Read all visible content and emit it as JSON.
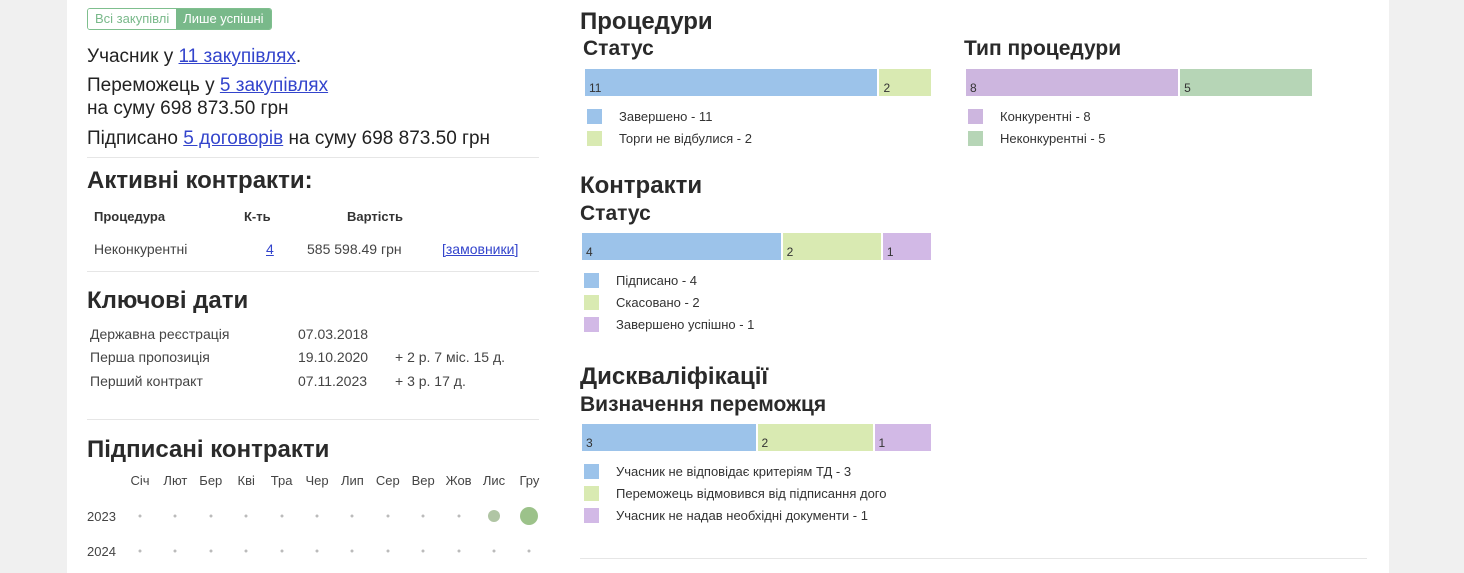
{
  "toggle": {
    "all": "Всі закупівлі",
    "success": "Лише успішні"
  },
  "summary": {
    "participant_prefix": "Учасник у ",
    "participant_link": "11 закупівлях",
    "participant_suffix": ".",
    "winner_prefix": "Переможець у ",
    "winner_link": "5 закупівлях",
    "winner_sum": "на суму 698 873.50 грн",
    "signed_prefix": "Підписано ",
    "signed_link": "5 договорів",
    "signed_suffix": " на суму 698 873.50 грн"
  },
  "active_contracts": {
    "title": "Активні контракти:",
    "headers": {
      "procedure": "Процедура",
      "count": "К-ть",
      "value": "Вартість"
    },
    "row": {
      "procedure": "Неконкурентні",
      "count": "4",
      "value": "585 598.49 грн",
      "link": "[замовники]"
    }
  },
  "key_dates": {
    "title": "Ключові дати",
    "rows": [
      {
        "label": "Державна реєстрація",
        "date": "07.03.2018",
        "delta": ""
      },
      {
        "label": "Перша пропозиція",
        "date": "19.10.2020",
        "delta": "+ 2 р. 7 міс. 15 д."
      },
      {
        "label": "Перший контракт",
        "date": "07.11.2023",
        "delta": "+ 3 р. 17 д."
      }
    ]
  },
  "signed_contracts": {
    "title": "Підписані контракти",
    "months": [
      "Січ",
      "Лют",
      "Бер",
      "Кві",
      "Тра",
      "Чер",
      "Лип",
      "Сер",
      "Вер",
      "Жов",
      "Лис",
      "Гру"
    ],
    "years": [
      "2023",
      "2024"
    ],
    "highlight": [
      {
        "year": "2023",
        "month": "Лис",
        "level": 1
      },
      {
        "year": "2023",
        "month": "Гру",
        "level": 2
      }
    ]
  },
  "procedures": {
    "title": "Процедури",
    "status": {
      "title": "Статус",
      "bars": [
        {
          "value": 11,
          "color": "#9cc3ea"
        },
        {
          "value": 2,
          "color": "#d9eab2"
        }
      ],
      "legend": [
        {
          "label": "Завершено - 11",
          "color": "#9cc3ea"
        },
        {
          "label": "Торги не відбулися - 2",
          "color": "#d9eab2"
        }
      ]
    },
    "type": {
      "title": "Тип процедури",
      "bars": [
        {
          "value": 8,
          "color": "#cdb6df"
        },
        {
          "value": 5,
          "color": "#b6d5b6"
        }
      ],
      "legend": [
        {
          "label": "Конкурентні - 8",
          "color": "#cdb6df"
        },
        {
          "label": "Неконкурентні - 5",
          "color": "#b6d5b6"
        }
      ]
    }
  },
  "contracts": {
    "title": "Контракти",
    "status": {
      "title": "Статус",
      "bars": [
        {
          "value": 4,
          "color": "#9cc3ea"
        },
        {
          "value": 2,
          "color": "#d9eab2"
        },
        {
          "value": 1,
          "color": "#d2b9e6"
        }
      ],
      "legend": [
        {
          "label": "Підписано - 4",
          "color": "#9cc3ea"
        },
        {
          "label": "Скасовано - 2",
          "color": "#d9eab2"
        },
        {
          "label": "Завершено успішно - 1",
          "color": "#d2b9e6"
        }
      ]
    }
  },
  "disqualifications": {
    "title": "Дискваліфікації",
    "winner": {
      "title": "Визначення переможця",
      "bars": [
        {
          "value": 3,
          "color": "#9cc3ea"
        },
        {
          "value": 2,
          "color": "#d9eab2"
        },
        {
          "value": 1,
          "color": "#d2b9e6"
        }
      ],
      "legend": [
        {
          "label": "Учасник не відповідає критеріям ТД - 3",
          "color": "#9cc3ea"
        },
        {
          "label": "Переможець відмовився від підписання дого",
          "color": "#d9eab2"
        },
        {
          "label": "Учасник не надав необхідні документи - 1",
          "color": "#d2b9e6"
        }
      ]
    }
  }
}
